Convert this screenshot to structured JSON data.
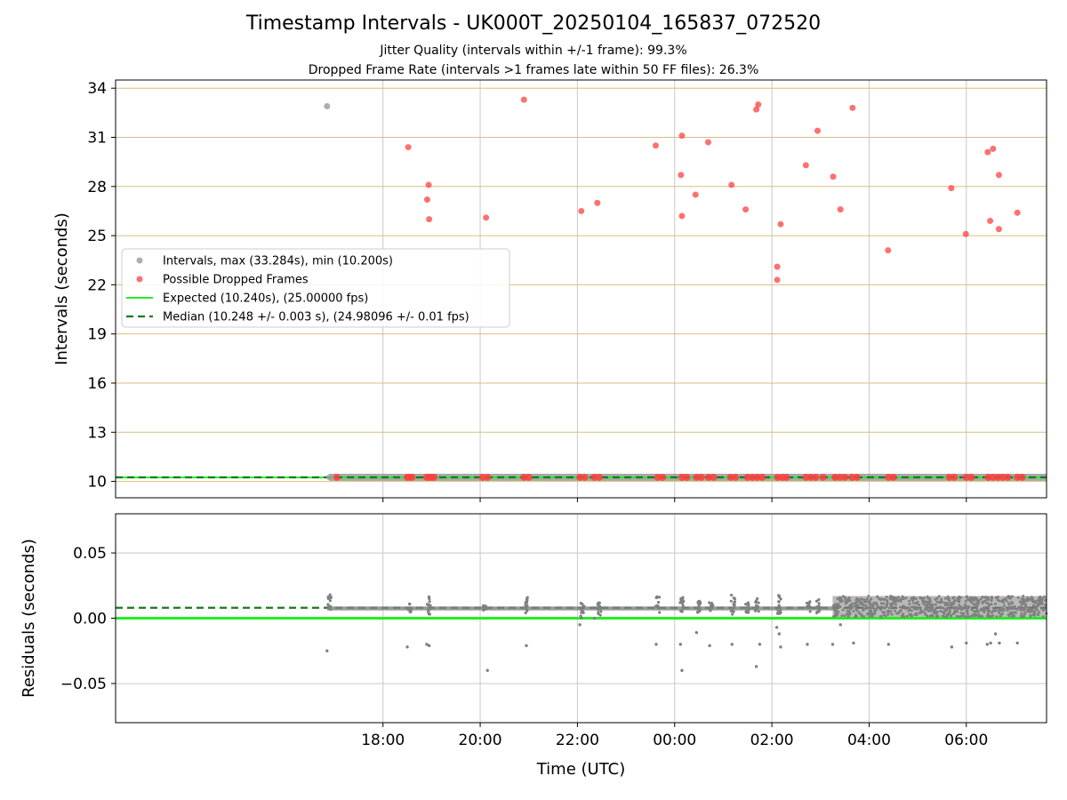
{
  "title": "Timestamp Intervals - UK000T_20250104_165837_072520",
  "subtitle_1": "Jitter Quality (intervals within +/-1 frame): 99.3%",
  "subtitle_2": "Dropped Frame Rate (intervals >1 frames late within 50 FF files): 26.3%",
  "colors": {
    "interval_grey": "#a0a0a0",
    "dropped_red": "#ff4040",
    "expected_green": "#22ee22",
    "median_darkgreen": "#1a7a1a",
    "residual_grey": "#808080",
    "hgrid_gold": "#d8bf80",
    "grid_grey": "#c8c8c8"
  },
  "chart_data": [
    {
      "type": "scatter",
      "ylabel": "Intervals (seconds)",
      "x_unit": "hours since 00:00 UTC (negative = previous day)",
      "xlim": [
        -11.5,
        7.65
      ],
      "ylim": [
        9,
        34.5
      ],
      "yticks": [
        10,
        13,
        16,
        19,
        22,
        25,
        28,
        31,
        34
      ],
      "grid": true,
      "legend": {
        "placement": "center-left",
        "entries": [
          "Intervals, max (33.284s), min (10.200s)",
          "Possible Dropped Frames",
          "Expected (10.240s), (25.00000 fps)",
          "Median (10.248 +/- 0.003 s), (24.98096 +/- 0.01 fps)"
        ]
      },
      "series": [
        {
          "name": "Intervals, max (33.284s), min (10.200s)",
          "marker": "dot",
          "points": [
            [
              -7.15,
              32.9
            ],
            [
              -7.1,
              10.25
            ]
          ]
        },
        {
          "name": "Possible Dropped Frames",
          "marker": "dot",
          "points": [
            [
              -5.48,
              30.4
            ],
            [
              -5.06,
              28.1
            ],
            [
              -5.09,
              27.2
            ],
            [
              -5.05,
              26.0
            ],
            [
              -3.88,
              26.1
            ],
            [
              -3.1,
              33.3
            ],
            [
              -1.92,
              26.5
            ],
            [
              -1.59,
              27.0
            ],
            [
              -0.39,
              30.5
            ],
            [
              0.15,
              31.1
            ],
            [
              0.13,
              28.7
            ],
            [
              0.15,
              26.2
            ],
            [
              0.43,
              27.5
            ],
            [
              0.69,
              30.7
            ],
            [
              1.17,
              28.1
            ],
            [
              1.46,
              26.6
            ],
            [
              1.68,
              32.7
            ],
            [
              1.72,
              33.0
            ],
            [
              2.11,
              23.1
            ],
            [
              2.11,
              22.3
            ],
            [
              2.18,
              25.7
            ],
            [
              2.7,
              29.3
            ],
            [
              2.94,
              31.4
            ],
            [
              3.26,
              28.6
            ],
            [
              3.41,
              26.6
            ],
            [
              3.66,
              32.8
            ],
            [
              4.39,
              24.1
            ],
            [
              5.69,
              27.9
            ],
            [
              5.99,
              25.1
            ],
            [
              6.44,
              30.1
            ],
            [
              6.49,
              25.9
            ],
            [
              6.55,
              30.3
            ],
            [
              6.67,
              28.7
            ],
            [
              6.67,
              25.4
            ],
            [
              7.05,
              26.4
            ]
          ]
        },
        {
          "name": "Possible Dropped Frames (baseline)",
          "marker": "dot",
          "y": 10.25,
          "x": [
            -6.95,
            -5.5,
            -5.45,
            -5.4,
            -5.1,
            -5.05,
            -5.0,
            -4.95,
            -3.95,
            -3.85,
            -3.1,
            -3.0,
            -1.95,
            -1.85,
            -1.65,
            -1.55,
            -0.35,
            -0.25,
            0.15,
            0.25,
            0.45,
            0.55,
            0.7,
            0.8,
            1.15,
            1.25,
            1.5,
            1.6,
            1.7,
            1.8,
            2.12,
            2.22,
            2.3,
            2.7,
            2.8,
            2.9,
            3.05,
            3.3,
            3.4,
            3.5,
            3.65,
            3.75,
            4.4,
            4.5,
            5.65,
            5.75,
            6.0,
            6.1,
            6.45,
            6.55,
            6.65,
            6.75,
            6.85,
            7.05,
            7.15
          ]
        },
        {
          "name": "Expected (10.240s), (25.00000 fps)",
          "y": 10.24
        },
        {
          "name": "Median (10.248 +/- 0.003 s), (24.98096 +/- 0.01 fps)",
          "y": 10.248
        }
      ]
    },
    {
      "type": "scatter",
      "xlabel": "Time (UTC)",
      "ylabel": "Residuals (seconds)",
      "xlim": [
        -11.5,
        7.65
      ],
      "ylim": [
        -0.08,
        0.08
      ],
      "yticks": [
        0.05,
        0.0,
        -0.05
      ],
      "ytick_labels": [
        "0.05",
        "0.00",
        "−0.05"
      ],
      "xticks": [
        -6,
        -4,
        -2,
        0,
        2,
        4,
        6
      ],
      "xtick_labels": [
        "18:00",
        "20:00",
        "22:00",
        "00:00",
        "02:00",
        "04:00",
        "06:00"
      ],
      "grid": true,
      "series": [
        {
          "name": "Expected",
          "y": 0.0
        },
        {
          "name": "Median",
          "y": 0.008
        },
        {
          "name": "Residual clusters (dense)",
          "clusters": [
            [
              -7.1,
              0.004,
              0.018
            ],
            [
              -5.45,
              0.004,
              0.012
            ],
            [
              -5.05,
              0.003,
              0.017
            ],
            [
              -3.9,
              0.005,
              0.01
            ],
            [
              -3.05,
              0.004,
              0.016
            ],
            [
              -1.9,
              0.0,
              0.013
            ],
            [
              -1.55,
              0.002,
              0.012
            ],
            [
              -0.35,
              0.004,
              0.017
            ],
            [
              0.15,
              0.004,
              0.016
            ],
            [
              0.5,
              0.004,
              0.014
            ],
            [
              0.75,
              0.005,
              0.012
            ],
            [
              1.2,
              0.003,
              0.018
            ],
            [
              1.5,
              0.004,
              0.012
            ],
            [
              1.7,
              0.004,
              0.016
            ],
            [
              2.15,
              0.003,
              0.018
            ],
            [
              2.75,
              0.004,
              0.013
            ],
            [
              2.95,
              0.004,
              0.015
            ]
          ],
          "band": {
            "x_from": 3.25,
            "x_to": 7.65,
            "y_from": 0.001,
            "y_to": 0.017
          }
        },
        {
          "name": "Residual outliers",
          "points": [
            [
              -7.15,
              -0.025
            ],
            [
              -5.5,
              -0.022
            ],
            [
              -5.1,
              -0.02
            ],
            [
              -5.05,
              -0.021
            ],
            [
              -3.85,
              -0.04
            ],
            [
              -3.05,
              -0.021
            ],
            [
              -1.95,
              -0.005
            ],
            [
              -1.65,
              0.0
            ],
            [
              -0.38,
              -0.02
            ],
            [
              0.12,
              -0.02
            ],
            [
              0.15,
              -0.04
            ],
            [
              0.45,
              -0.011
            ],
            [
              0.72,
              -0.021
            ],
            [
              1.18,
              -0.02
            ],
            [
              1.68,
              -0.037
            ],
            [
              1.75,
              -0.02
            ],
            [
              2.1,
              -0.007
            ],
            [
              2.15,
              -0.012
            ],
            [
              2.18,
              -0.022
            ],
            [
              2.73,
              -0.02
            ],
            [
              3.25,
              -0.02
            ],
            [
              3.41,
              -0.005
            ],
            [
              3.68,
              -0.019
            ],
            [
              4.4,
              -0.02
            ],
            [
              5.7,
              -0.022
            ],
            [
              6.0,
              -0.019
            ],
            [
              6.43,
              -0.02
            ],
            [
              6.5,
              -0.019
            ],
            [
              6.6,
              -0.012
            ],
            [
              6.68,
              -0.019
            ],
            [
              7.05,
              -0.019
            ]
          ]
        }
      ]
    }
  ]
}
